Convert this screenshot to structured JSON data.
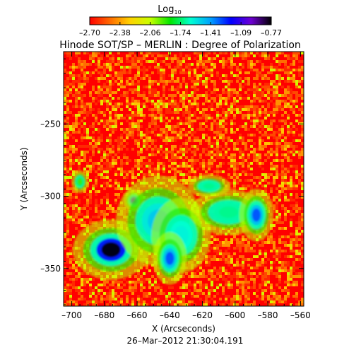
{
  "chart_data": {
    "type": "heatmap",
    "title": "Hinode SOT/SP – MERLIN : Degree of Polarization",
    "colorbar": {
      "label": "Log",
      "label_subscript": "10",
      "range": [
        -2.7,
        -0.77
      ],
      "tick_labels": [
        "–2.70",
        "–2.38",
        "–2.06",
        "–1.74",
        "–1.41",
        "–1.09",
        "–0.77"
      ],
      "colormap": [
        "#ff0000",
        "#ff6a00",
        "#ffd200",
        "#c8ff00",
        "#00e600",
        "#00ffd2",
        "#00a0ff",
        "#0000ff",
        "#6e00d2",
        "#000000"
      ]
    },
    "xlabel": "X (Arcseconds)",
    "ylabel": "Y (Arcseconds)",
    "xlim": [
      -705,
      -558
    ],
    "ylim": [
      -376,
      -200
    ],
    "xticks": [
      -700,
      -680,
      -660,
      -640,
      -620,
      -600,
      -580,
      -560
    ],
    "xtick_labels": [
      "–700",
      "–680",
      "–660",
      "–640",
      "–620",
      "–600",
      "–580",
      "–560"
    ],
    "yticks": [
      -250,
      -300,
      -350
    ],
    "ytick_labels": [
      "–250",
      "–300",
      "–350"
    ],
    "features": [
      {
        "x": -676,
        "y": -337,
        "rx": 9,
        "ry": 8,
        "level": -0.77
      },
      {
        "x": -662,
        "y": -303,
        "rx": 2.5,
        "ry": 3,
        "level": -1.1
      },
      {
        "x": -647,
        "y": -317,
        "rx": 10,
        "ry": 12,
        "level": -1.5
      },
      {
        "x": -633,
        "y": -327,
        "rx": 7,
        "ry": 10,
        "level": -1.6
      },
      {
        "x": -604,
        "y": -311,
        "rx": 9,
        "ry": 6,
        "level": -1.7
      },
      {
        "x": -587,
        "y": -313,
        "rx": 4,
        "ry": 7,
        "level": -1.3
      },
      {
        "x": -616,
        "y": -293,
        "rx": 5,
        "ry": 3,
        "level": -1.7
      },
      {
        "x": -640,
        "y": -343,
        "rx": 4,
        "ry": 7,
        "level": -1.3
      },
      {
        "x": -695,
        "y": -290,
        "rx": 2,
        "ry": 3,
        "level": -1.9
      }
    ],
    "grid": false
  },
  "footer": {
    "timestamp": "26–Mar–2012 21:30:04.191"
  },
  "colors": {
    "background": "#ffffff",
    "axis": "#000000"
  }
}
